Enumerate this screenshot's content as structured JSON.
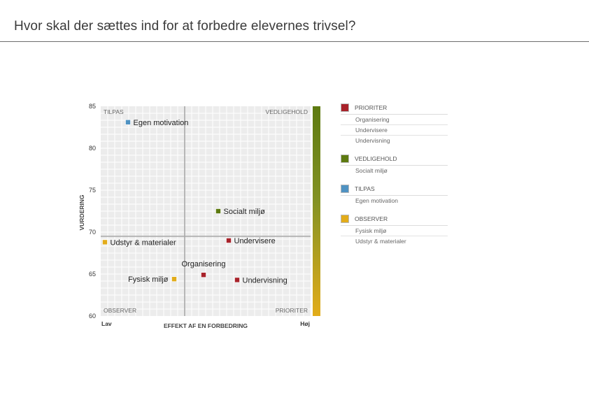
{
  "page": {
    "title": "Hvor skal der sættes ind for at forbedre elevernes trivsel?"
  },
  "chart_data": {
    "type": "scatter",
    "ylabel": "VURDERING",
    "xlabel": "EFFEKT AF EN FORBEDRING",
    "x_low_label": "Lav",
    "x_high_label": "Høj",
    "ylim": [
      60,
      85
    ],
    "y_ticks": [
      60,
      65,
      70,
      75,
      80,
      85
    ],
    "xlim": [
      0,
      1
    ],
    "x_divider": 0.4,
    "y_divider": 69.5,
    "grid": true,
    "quadrant_labels": {
      "top_left": "TILPAS",
      "top_right": "VEDLIGEHOLD",
      "bottom_left": "OBSERVER",
      "bottom_right": "PRIORITER"
    },
    "colors": {
      "prioriter": "#a8222a",
      "vedligehold": "#5d7a10",
      "tilpas": "#4f92c2",
      "observer": "#e2ac1a",
      "grid_bg": "#ececec",
      "grid_line": "#ffffff",
      "divider": "#a8a8a8"
    },
    "points": [
      {
        "name": "Egen motivation",
        "x": 0.13,
        "y": 83.1,
        "category": "tilpas",
        "label_side": "right"
      },
      {
        "name": "Socialt miljø",
        "x": 0.56,
        "y": 72.5,
        "category": "vedligehold",
        "label_side": "right"
      },
      {
        "name": "Udstyr & materialer",
        "x": 0.02,
        "y": 68.8,
        "category": "observer",
        "label_side": "right"
      },
      {
        "name": "Undervisere",
        "x": 0.61,
        "y": 69.0,
        "category": "prioriter",
        "label_side": "right"
      },
      {
        "name": "Organisering",
        "x": 0.49,
        "y": 64.9,
        "category": "prioriter",
        "label_side": "above"
      },
      {
        "name": "Fysisk miljø",
        "x": 0.35,
        "y": 64.4,
        "category": "observer",
        "label_side": "left"
      },
      {
        "name": "Undervisning",
        "x": 0.65,
        "y": 64.3,
        "category": "prioriter",
        "label_side": "right"
      }
    ],
    "legend": [
      {
        "key": "prioriter",
        "label": "PRIORITER",
        "items": [
          "Organisering",
          "Undervisere",
          "Undervisning"
        ]
      },
      {
        "key": "vedligehold",
        "label": "VEDLIGEHOLD",
        "items": [
          "Socialt miljø"
        ]
      },
      {
        "key": "tilpas",
        "label": "TILPAS",
        "items": [
          "Egen motivation"
        ]
      },
      {
        "key": "observer",
        "label": "OBSERVER",
        "items": [
          "Fysisk miljø",
          "Udstyr & materialer"
        ]
      }
    ]
  }
}
